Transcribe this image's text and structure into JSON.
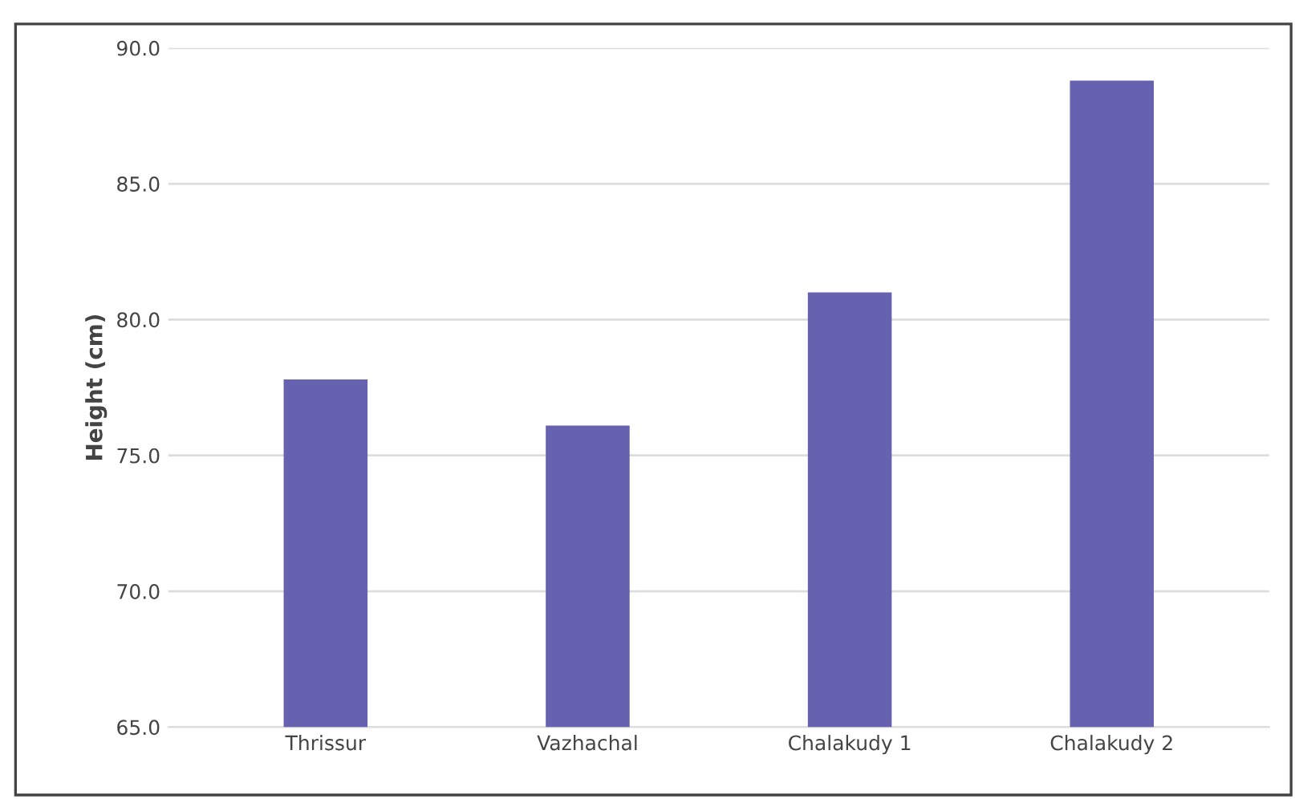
{
  "chart_data": {
    "type": "bar",
    "ylabel": "Height (cm)",
    "categories": [
      "Thrissur",
      "Vazhachal",
      "Chalakudy 1",
      "Chalakudy 2"
    ],
    "values": [
      77.8,
      76.1,
      81.0,
      88.8
    ],
    "color": "#6762b0",
    "ylim": [
      65,
      90
    ],
    "yticks": [
      {
        "value": 65,
        "label": "65.0"
      },
      {
        "value": 70,
        "label": "70.0"
      },
      {
        "value": 75,
        "label": "75.0"
      },
      {
        "value": 80,
        "label": "80.0"
      },
      {
        "value": 85,
        "label": "85.0"
      },
      {
        "value": 90,
        "label": "90.0"
      }
    ],
    "grid": "y"
  }
}
